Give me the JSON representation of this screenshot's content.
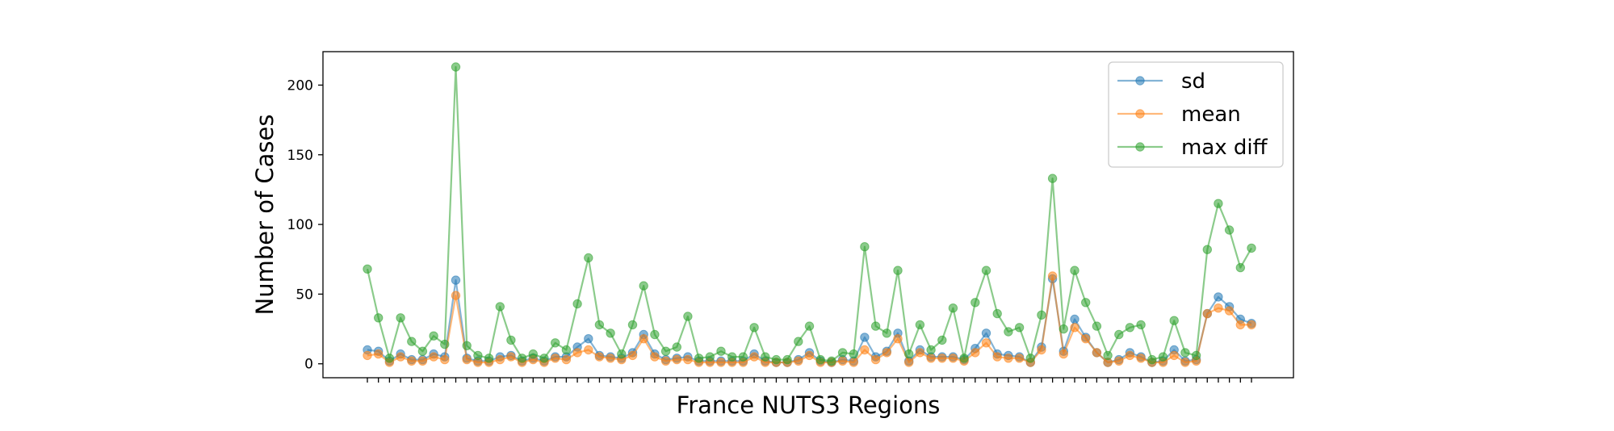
{
  "chart_data": {
    "type": "line",
    "title": "",
    "xlabel": "France NUTS3 Regions",
    "ylabel": "Number of Cases",
    "ylim": [
      -10,
      224
    ],
    "yticks": [
      0,
      50,
      100,
      150,
      200
    ],
    "grid": false,
    "legend_position": "top-right",
    "x_tick_labels": "none",
    "series": [
      {
        "name": "sd",
        "color": "#1f77b4",
        "values": [
          10,
          9,
          2,
          7,
          3,
          3,
          7,
          5,
          60,
          4,
          2,
          2,
          5,
          6,
          2,
          4,
          2,
          5,
          5,
          12,
          18,
          6,
          5,
          4,
          8,
          21,
          7,
          3,
          4,
          5,
          2,
          2,
          2,
          2,
          2,
          7,
          2,
          1,
          1,
          3,
          8,
          2,
          1,
          3,
          2,
          19,
          5,
          9,
          22,
          2,
          10,
          5,
          5,
          5,
          3,
          11,
          22,
          7,
          6,
          5,
          1,
          12,
          61,
          9,
          32,
          19,
          8,
          1,
          3,
          8,
          5,
          1,
          2,
          10,
          2,
          3,
          36,
          48,
          41,
          32,
          29
        ]
      },
      {
        "name": "mean",
        "color": "#ff7f0e",
        "values": [
          6,
          7,
          1,
          5,
          2,
          2,
          5,
          3,
          49,
          3,
          1,
          1,
          3,
          5,
          1,
          3,
          1,
          4,
          3,
          8,
          10,
          5,
          4,
          3,
          6,
          18,
          5,
          2,
          3,
          3,
          1,
          1,
          1,
          1,
          1,
          5,
          1,
          1,
          1,
          2,
          6,
          1,
          1,
          2,
          1,
          10,
          3,
          8,
          18,
          1,
          8,
          4,
          4,
          4,
          2,
          8,
          15,
          5,
          4,
          4,
          1,
          10,
          63,
          7,
          26,
          18,
          8,
          1,
          2,
          6,
          4,
          1,
          1,
          6,
          1,
          2,
          36,
          40,
          38,
          28,
          28
        ]
      },
      {
        "name": "max diff",
        "color": "#2ca02c",
        "values": [
          68,
          33,
          4,
          33,
          16,
          9,
          20,
          14,
          213,
          13,
          6,
          4,
          41,
          17,
          4,
          7,
          4,
          15,
          10,
          43,
          76,
          28,
          22,
          7,
          28,
          56,
          21,
          9,
          12,
          34,
          4,
          5,
          9,
          5,
          5,
          26,
          5,
          3,
          3,
          16,
          27,
          3,
          2,
          8,
          7,
          84,
          27,
          22,
          67,
          7,
          28,
          10,
          17,
          40,
          4,
          44,
          67,
          36,
          23,
          26,
          4,
          35,
          133,
          25,
          67,
          44,
          27,
          6,
          21,
          26,
          28,
          3,
          5,
          31,
          8,
          6,
          82,
          115,
          96,
          69,
          83
        ]
      }
    ]
  }
}
